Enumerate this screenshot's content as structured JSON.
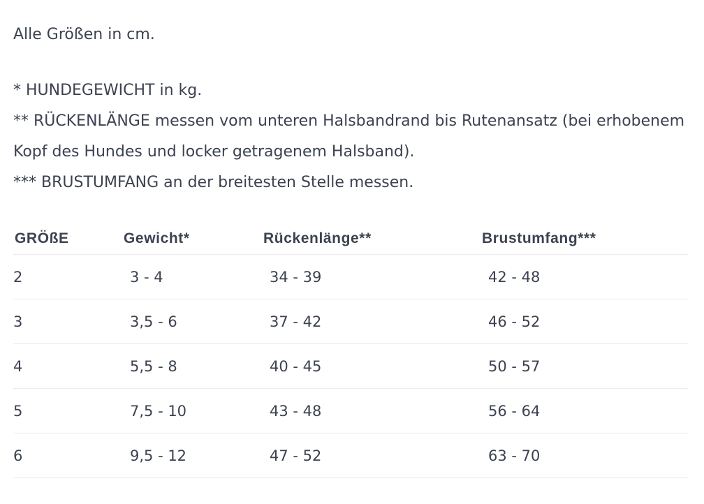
{
  "intro": "Alle Größen in cm.",
  "notes": [
    "* HUNDEGEWICHT in kg.",
    "** RÜCKENLÄNGE messen vom unteren Halsbandrand bis Rutenansatz (bei erhobenem Kopf des Hundes und locker getragenem Halsband).",
    "*** BRUSTUMFANG an der breitesten Stelle messen."
  ],
  "table": {
    "headers": [
      "GRÖßE",
      "Gewicht*",
      "Rückenlänge**",
      "Brustumfang***"
    ],
    "rows": [
      [
        "2",
        "3 - 4",
        "34 - 39",
        "42 - 48"
      ],
      [
        "3",
        "3,5 - 6",
        "37 - 42",
        "46 - 52"
      ],
      [
        "4",
        "5,5 - 8",
        "40 - 45",
        "50 - 57"
      ],
      [
        "5",
        "7,5 - 10",
        "43 - 48",
        "56 - 64"
      ],
      [
        "6",
        "9,5 - 12",
        "47 - 52",
        "63 - 70"
      ]
    ]
  }
}
